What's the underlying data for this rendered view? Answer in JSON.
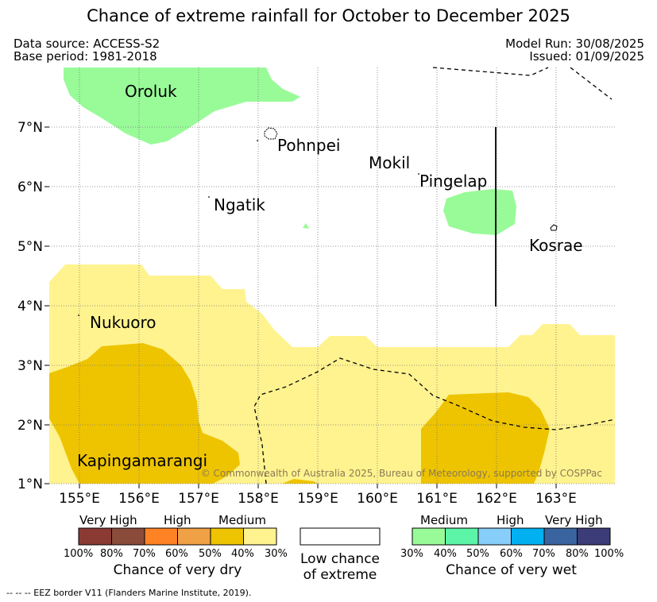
{
  "header": {
    "title": "Chance of extreme rainfall for October to December 2025",
    "data_source": "Data source: ACCESS-S2",
    "base_period": "Base period: 1981-2018",
    "model_run": "Model Run: 30/08/2025",
    "issued": "Issued: 01/09/2025"
  },
  "map": {
    "lon_ticks": [
      "155°E",
      "156°E",
      "157°E",
      "158°E",
      "159°E",
      "160°E",
      "161°E",
      "162°E",
      "163°E"
    ],
    "lat_ticks": [
      "7°N",
      "6°N",
      "5°N",
      "4°N",
      "3°N",
      "2°N",
      "1°N"
    ],
    "places": {
      "oroluk": "Oroluk",
      "pohnpei": "Pohnpei",
      "mokil": "Mokil",
      "pingelap": "Pingelap",
      "ngatik": "Ngatik",
      "kosrae": "Kosrae",
      "nukuoro": "Nukuoro",
      "kapingamarangi": "Kapingamarangi"
    },
    "copyright": "© Commonwealth of Australia 2025, Bureau of Meteorology, supported by COSPPac"
  },
  "legend": {
    "dry": {
      "categories": [
        "Very High",
        "High",
        "Medium"
      ],
      "colors": [
        "#8b3a33",
        "#8b4b3a",
        "#ff8225",
        "#f0a045",
        "#eec400",
        "#fff38f"
      ],
      "percents": [
        "100%",
        "80%",
        "70%",
        "60%",
        "50%",
        "40%",
        "30%"
      ],
      "title": "Chance of very dry"
    },
    "low": {
      "line1": "Low chance",
      "line2": "of extreme"
    },
    "wet": {
      "categories": [
        "Medium",
        "High",
        "Very High"
      ],
      "colors": [
        "#98fb98",
        "#5cf5a8",
        "#87cefa",
        "#00b0f0",
        "#3a64a0",
        "#3c3c78"
      ],
      "percents": [
        "30%",
        "40%",
        "50%",
        "60%",
        "70%",
        "80%",
        "100%"
      ],
      "title": "Chance of very wet"
    }
  },
  "footnote": "--  --  -- EEZ border V11 (Flanders Marine Institute, 2019)."
}
